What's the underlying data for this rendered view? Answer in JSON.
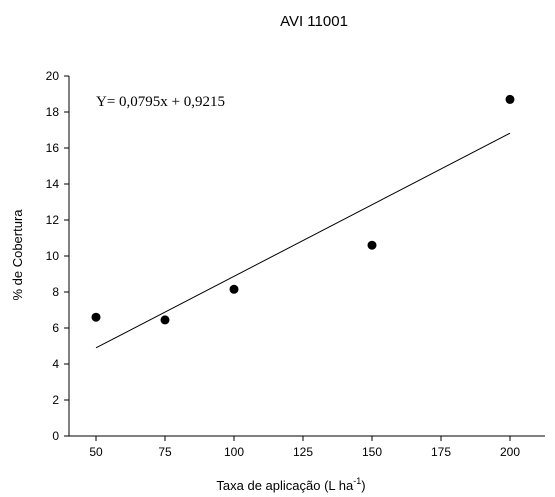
{
  "chart_data": {
    "type": "scatter",
    "title": "AVI 11001",
    "xlabel_main": "Taxa de aplicação (L ha",
    "xlabel_sup": "-1",
    "xlabel_end": ")",
    "ylabel": "% de Cobertura",
    "xlim": [
      40,
      215
    ],
    "ylim": [
      0,
      20
    ],
    "xticks": [
      50,
      75,
      100,
      125,
      150,
      175,
      200
    ],
    "yticks": [
      0,
      2,
      4,
      6,
      8,
      10,
      12,
      14,
      16,
      18,
      20
    ],
    "points": [
      {
        "x": 50,
        "y": 6.6
      },
      {
        "x": 75,
        "y": 6.45
      },
      {
        "x": 100,
        "y": 8.15
      },
      {
        "x": 150,
        "y": 10.6
      },
      {
        "x": 200,
        "y": 18.7
      }
    ],
    "regression": {
      "slope": 0.0795,
      "intercept": 0.9215,
      "x_range": [
        50,
        200
      ],
      "equation": "Y= 0,0795x + 0,9215"
    },
    "grid": false
  }
}
